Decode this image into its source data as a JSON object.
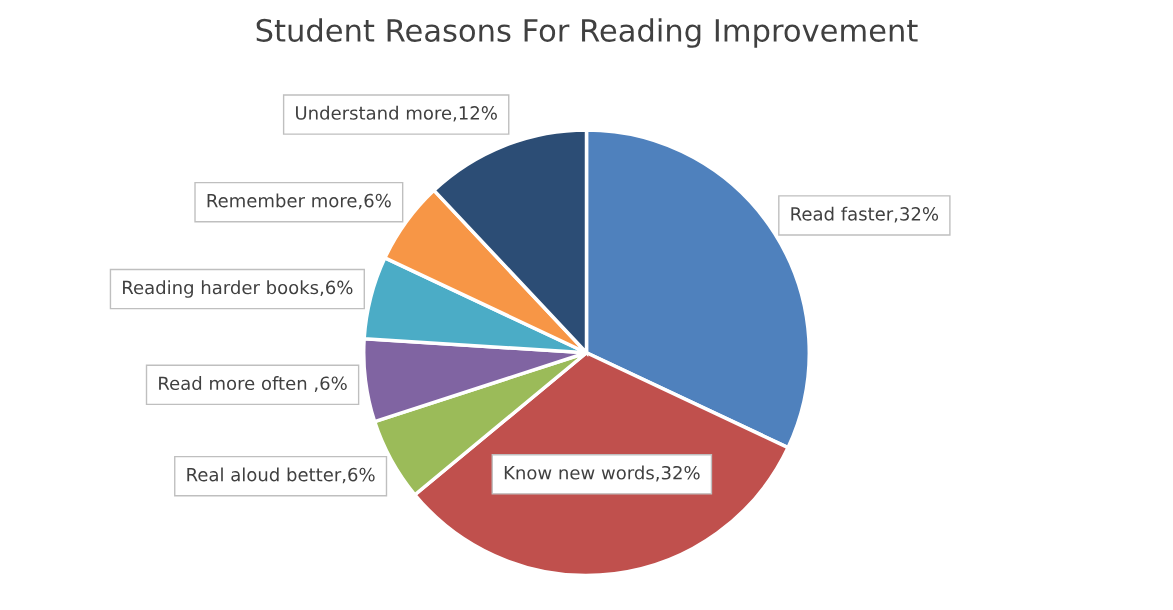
{
  "chart_data": {
    "type": "pie",
    "title": "Student Reasons For Reading Improvement",
    "categories": [
      "Read faster",
      "Know new words",
      "Real aloud better",
      "Read more often ",
      "Reading harder books",
      "Remember more",
      "Understand more"
    ],
    "values": [
      32,
      32,
      6,
      6,
      6,
      6,
      12
    ],
    "value_labels": [
      ",32%",
      ",32%",
      ",6%",
      ",6%",
      ",6%",
      ",6%",
      ",12%"
    ],
    "colors": [
      "#4f81bd",
      "#c0504d",
      "#9bbb59",
      "#8064a2",
      "#4bacc6",
      "#f79646",
      "#2c4d75"
    ],
    "legend": false
  }
}
